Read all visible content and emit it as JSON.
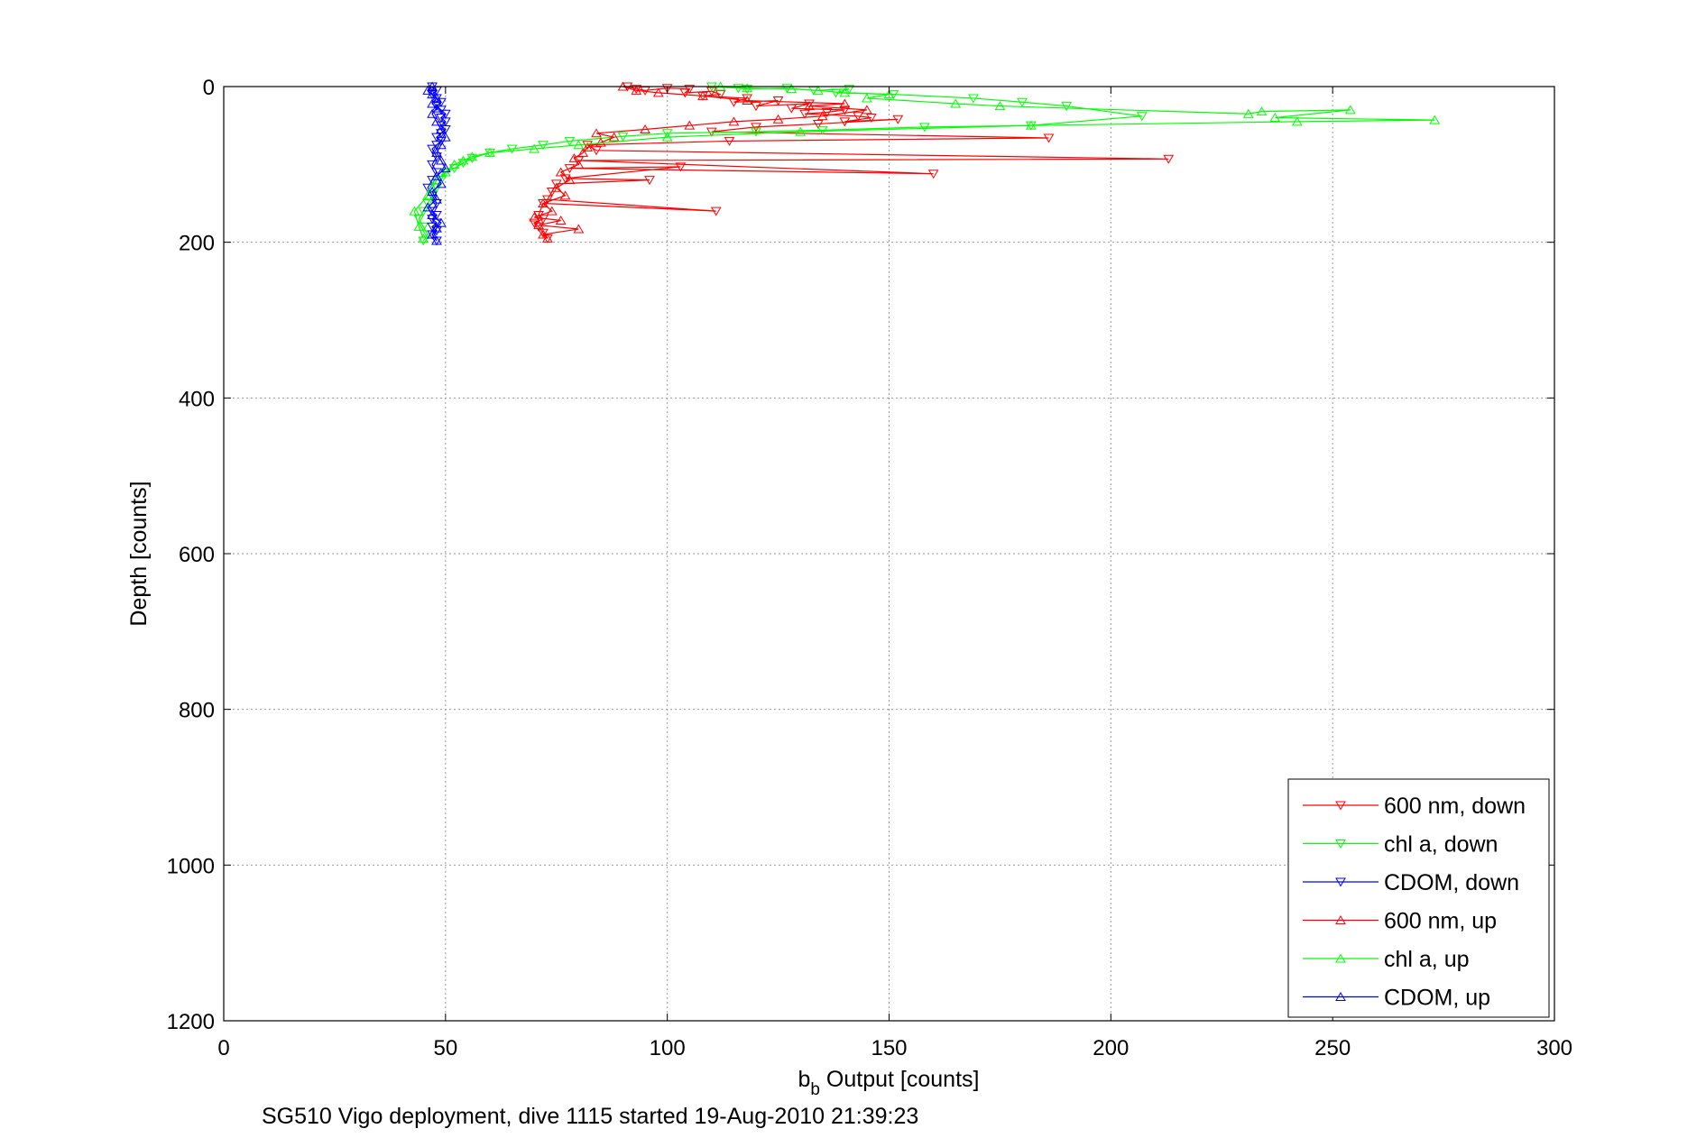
{
  "chart_data": {
    "type": "scatter",
    "xlabel_main": "b",
    "xlabel_sub": "b",
    "xlabel_rest": " Output [counts]",
    "ylabel": "Depth [counts]",
    "caption": "SG510 Vigo deployment, dive 1115 started 19-Aug-2010 21:39:23",
    "xlim": [
      0,
      300
    ],
    "ylim": [
      0,
      1200
    ],
    "y_reversed": true,
    "grid": true,
    "x_ticks": [
      {
        "value": 0,
        "label": "0"
      },
      {
        "value": 50,
        "label": "50"
      },
      {
        "value": 100,
        "label": "100"
      },
      {
        "value": 150,
        "label": "150"
      },
      {
        "value": 200,
        "label": "200"
      },
      {
        "value": 250,
        "label": "250"
      },
      {
        "value": 300,
        "label": "300"
      }
    ],
    "y_ticks": [
      {
        "value": 0,
        "label": "0"
      },
      {
        "value": 200,
        "label": "200"
      },
      {
        "value": 400,
        "label": "400"
      },
      {
        "value": 600,
        "label": "600"
      },
      {
        "value": 800,
        "label": "800"
      },
      {
        "value": 1000,
        "label": "1000"
      },
      {
        "value": 1200,
        "label": "1200"
      }
    ],
    "legend_position": "bottom-right",
    "series": [
      {
        "name": "600 nm, down",
        "color": "#ff0000",
        "marker": "triangle-down",
        "x": [
          91,
          93,
          95,
          100,
          105,
          104,
          110,
          112,
          108,
          118,
          115,
          125,
          120,
          132,
          128,
          140,
          136,
          131,
          143,
          146,
          140,
          152,
          134,
          120,
          110,
          186,
          114,
          82,
          84,
          213,
          80,
          160,
          78,
          103,
          77,
          96,
          75,
          74,
          73,
          111,
          72,
          71,
          72,
          70,
          71,
          72,
          73
        ],
        "y": [
          0,
          3,
          5,
          2,
          3,
          8,
          6,
          10,
          12,
          15,
          20,
          18,
          25,
          22,
          28,
          30,
          33,
          35,
          38,
          40,
          45,
          42,
          48,
          52,
          58,
          66,
          70,
          75,
          82,
          93,
          95,
          112,
          105,
          103,
          118,
          120,
          125,
          135,
          145,
          160,
          150,
          165,
          170,
          175,
          180,
          188,
          195
        ]
      },
      {
        "name": "chl a, down",
        "color": "#00ff00",
        "marker": "triangle-down",
        "x": [
          110,
          116,
          118,
          127,
          133,
          141,
          138,
          151,
          169,
          180,
          190,
          207,
          182,
          158,
          135,
          120,
          100,
          90,
          78,
          72,
          65,
          60,
          56,
          54,
          52,
          50,
          49,
          48,
          47,
          46,
          45,
          44,
          45,
          46,
          45
        ],
        "y": [
          0,
          2,
          3,
          2,
          5,
          3,
          8,
          10,
          15,
          20,
          25,
          38,
          50,
          52,
          56,
          58,
          60,
          64,
          70,
          75,
          80,
          85,
          92,
          98,
          105,
          110,
          120,
          130,
          140,
          150,
          160,
          170,
          180,
          190,
          198
        ]
      },
      {
        "name": "CDOM, down",
        "color": "#0000ff",
        "marker": "triangle-down",
        "x": [
          47,
          48,
          47,
          48,
          49,
          48,
          49,
          50,
          49,
          50,
          49,
          50,
          49,
          48,
          49,
          48,
          47,
          48,
          47,
          48,
          47,
          46,
          47,
          48,
          47,
          48,
          47,
          48,
          47,
          48,
          47,
          48
        ],
        "y": [
          0,
          5,
          10,
          15,
          20,
          25,
          30,
          35,
          40,
          45,
          50,
          55,
          60,
          65,
          70,
          75,
          80,
          90,
          100,
          110,
          120,
          130,
          140,
          150,
          160,
          165,
          170,
          175,
          180,
          185,
          190,
          198
        ]
      },
      {
        "name": "600 nm, up",
        "color": "#ff0000",
        "marker": "triangle-up",
        "x": [
          73,
          72,
          80,
          71,
          76,
          70,
          74,
          72,
          77,
          75,
          78,
          76,
          80,
          79,
          81,
          82,
          85,
          88,
          84,
          95,
          105,
          115,
          125,
          135,
          145,
          132,
          140,
          118,
          108,
          98,
          93,
          90
        ],
        "y": [
          195,
          190,
          183,
          178,
          172,
          168,
          160,
          150,
          140,
          130,
          120,
          110,
          100,
          92,
          85,
          78,
          72,
          65,
          60,
          55,
          50,
          45,
          42,
          38,
          30,
          25,
          22,
          18,
          12,
          8,
          5,
          0
        ]
      },
      {
        "name": "chl a, up",
        "color": "#00ff00",
        "marker": "triangle-up",
        "x": [
          45,
          44,
          43,
          46,
          47,
          48,
          50,
          52,
          54,
          56,
          60,
          70,
          80,
          100,
          130,
          182,
          242,
          273,
          237,
          254,
          234,
          231,
          175,
          165,
          145,
          150,
          140,
          134,
          128,
          118,
          112
        ],
        "y": [
          195,
          180,
          160,
          140,
          130,
          120,
          110,
          100,
          95,
          90,
          85,
          80,
          75,
          65,
          58,
          50,
          45,
          43,
          40,
          30,
          32,
          35,
          25,
          22,
          15,
          10,
          8,
          5,
          3,
          2,
          0
        ]
      },
      {
        "name": "CDOM, up",
        "color": "#0000ff",
        "marker": "triangle-up",
        "x": [
          48,
          47,
          48,
          49,
          47,
          46,
          48,
          47,
          49,
          48,
          50,
          49,
          48,
          49,
          50,
          49,
          48,
          47,
          48,
          47,
          48,
          47,
          46,
          47
        ],
        "y": [
          198,
          190,
          182,
          175,
          165,
          155,
          145,
          135,
          125,
          115,
          105,
          95,
          85,
          75,
          65,
          55,
          45,
          35,
          28,
          22,
          15,
          10,
          5,
          0
        ]
      }
    ]
  }
}
